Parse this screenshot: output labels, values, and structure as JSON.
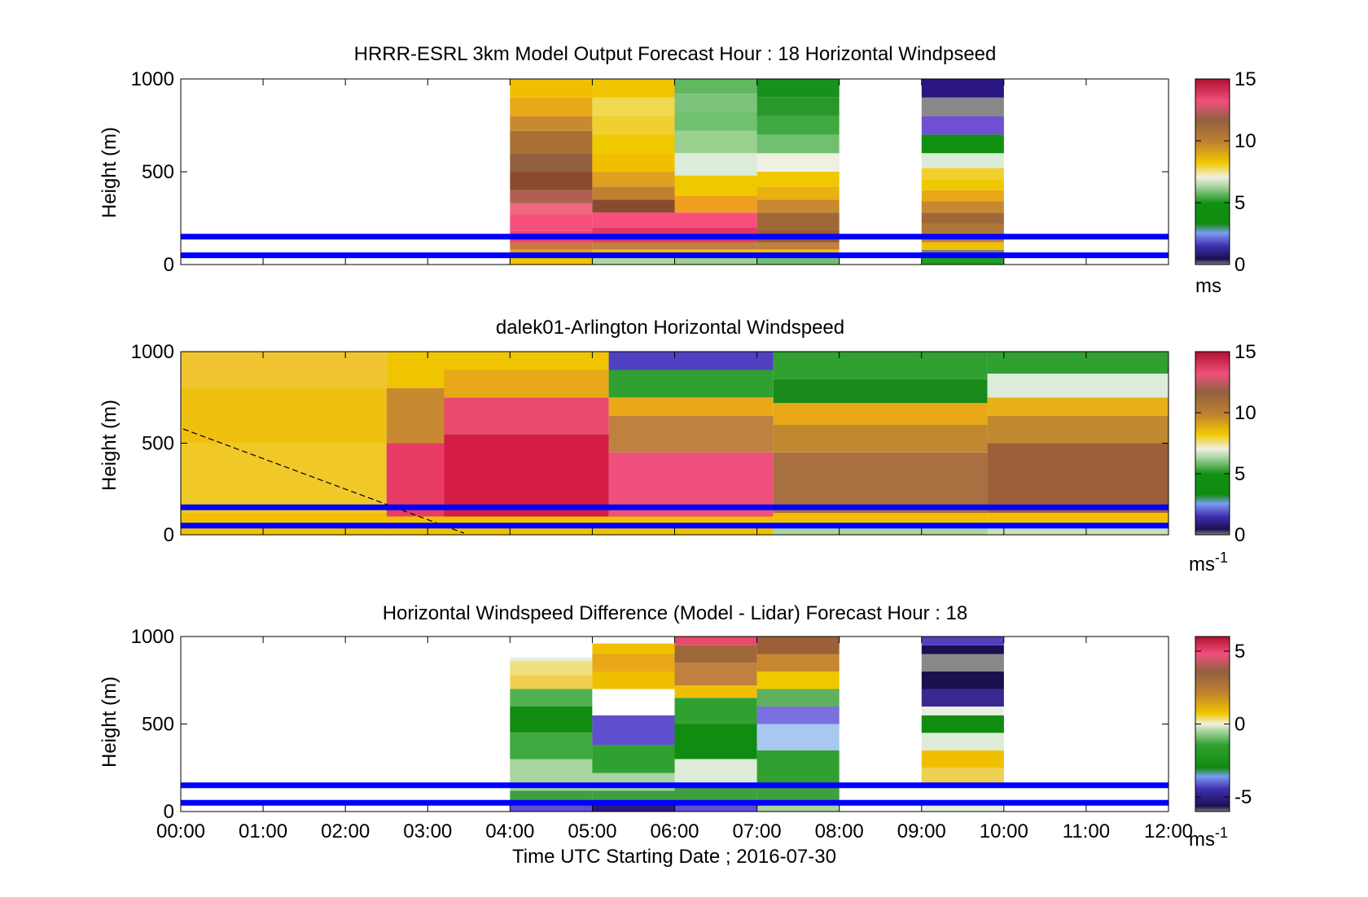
{
  "figure": {
    "xlabel": "Time UTC  Starting Date ; 2016-07-30",
    "x_tick_labels": [
      "00:00",
      "01:00",
      "02:00",
      "03:00",
      "04:00",
      "05:00",
      "06:00",
      "07:00",
      "08:00",
      "09:00",
      "10:00",
      "11:00",
      "12:00"
    ],
    "overlay_line_color": "#0000ff",
    "overlay_line_heights_m": [
      50,
      150
    ]
  },
  "chart_data": [
    {
      "type": "heatmap",
      "title": "HRRR-ESRL 3km Model Output   Forecast Hour : 18 Horizontal Windpseed",
      "ylabel": "Height (m)",
      "ylim": [
        0,
        1000
      ],
      "xlim": [
        0,
        12
      ],
      "y_tick_labels": [
        "0",
        "500",
        "1000"
      ],
      "colorbar": {
        "ticks": [
          "0",
          "5",
          "10",
          "15"
        ],
        "range": [
          0,
          15
        ],
        "unit": "ms",
        "unit_superscript": ""
      },
      "blocks": [
        {
          "t0": 4,
          "t1": 5,
          "levels": [
            [
              0,
              0.04,
              "#f0c400"
            ],
            [
              0.04,
              0.08,
              "#e0a010"
            ],
            [
              0.08,
              0.12,
              "#c87840"
            ],
            [
              0.12,
              0.18,
              "#f04070"
            ],
            [
              0.18,
              0.27,
              "#f8507c"
            ],
            [
              0.27,
              0.33,
              "#f06880"
            ],
            [
              0.33,
              0.4,
              "#b06050"
            ],
            [
              0.4,
              0.5,
              "#8a4a30"
            ],
            [
              0.5,
              0.6,
              "#906040"
            ],
            [
              0.6,
              0.72,
              "#a87030"
            ],
            [
              0.72,
              0.8,
              "#c88a30"
            ],
            [
              0.8,
              0.9,
              "#e8a818"
            ],
            [
              0.9,
              1,
              "#f0c000"
            ]
          ]
        },
        {
          "t0": 5,
          "t1": 6,
          "levels": [
            [
              0,
              0.04,
              "#b0d8a0"
            ],
            [
              0.04,
              0.08,
              "#f0c000"
            ],
            [
              0.08,
              0.12,
              "#c08040"
            ],
            [
              0.12,
              0.2,
              "#e03860"
            ],
            [
              0.2,
              0.28,
              "#f8507c"
            ],
            [
              0.28,
              0.35,
              "#8a4a30"
            ],
            [
              0.35,
              0.42,
              "#c08030"
            ],
            [
              0.42,
              0.5,
              "#e0a020"
            ],
            [
              0.5,
              0.6,
              "#f0c000"
            ],
            [
              0.6,
              0.7,
              "#f0c800"
            ],
            [
              0.7,
              0.8,
              "#f0d030"
            ],
            [
              0.8,
              0.9,
              "#f0d850"
            ],
            [
              0.9,
              1,
              "#f0c400"
            ]
          ]
        },
        {
          "t0": 6,
          "t1": 7,
          "levels": [
            [
              0,
              0.04,
              "#a0d090"
            ],
            [
              0.04,
              0.08,
              "#f0c000"
            ],
            [
              0.08,
              0.12,
              "#c08040"
            ],
            [
              0.12,
              0.2,
              "#e03860"
            ],
            [
              0.2,
              0.28,
              "#f8507c"
            ],
            [
              0.28,
              0.37,
              "#f0a020"
            ],
            [
              0.37,
              0.48,
              "#f0c800"
            ],
            [
              0.48,
              0.6,
              "#dcecd8"
            ],
            [
              0.6,
              0.72,
              "#9cd090"
            ],
            [
              0.72,
              0.82,
              "#70c070"
            ],
            [
              0.82,
              0.92,
              "#7cc47c"
            ],
            [
              0.92,
              1,
              "#60b860"
            ]
          ]
        },
        {
          "t0": 7,
          "t1": 8,
          "levels": [
            [
              0,
              0.04,
              "#70c070"
            ],
            [
              0.04,
              0.08,
              "#f0c000"
            ],
            [
              0.08,
              0.12,
              "#c08040"
            ],
            [
              0.12,
              0.18,
              "#9a5a30"
            ],
            [
              0.18,
              0.28,
              "#a06838"
            ],
            [
              0.28,
              0.35,
              "#c88830"
            ],
            [
              0.35,
              0.42,
              "#e8b010"
            ],
            [
              0.42,
              0.5,
              "#f0c800"
            ],
            [
              0.5,
              0.6,
              "#f0f0e0"
            ],
            [
              0.6,
              0.7,
              "#70c070"
            ],
            [
              0.7,
              0.8,
              "#40a840"
            ],
            [
              0.8,
              0.9,
              "#28982a"
            ],
            [
              0.9,
              1,
              "#18901c"
            ]
          ]
        },
        {
          "t0": 9,
          "t1": 10,
          "levels": [
            [
              0,
              0.04,
              "#20a020"
            ],
            [
              0.04,
              0.08,
              "#808080"
            ],
            [
              0.08,
              0.12,
              "#f0c000"
            ],
            [
              0.12,
              0.16,
              "#c08040"
            ],
            [
              0.16,
              0.22,
              "#b07838"
            ],
            [
              0.22,
              0.28,
              "#a06838"
            ],
            [
              0.28,
              0.34,
              "#c88830"
            ],
            [
              0.34,
              0.4,
              "#e8a818"
            ],
            [
              0.4,
              0.46,
              "#f0c800"
            ],
            [
              0.46,
              0.52,
              "#f0d030"
            ],
            [
              0.52,
              0.6,
              "#dcecd8"
            ],
            [
              0.6,
              0.7,
              "#109010"
            ],
            [
              0.7,
              0.8,
              "#7050d0"
            ],
            [
              0.8,
              0.9,
              "#888888"
            ],
            [
              0.9,
              1,
              "#2a1680"
            ]
          ]
        }
      ]
    },
    {
      "type": "heatmap",
      "title": "dalek01-Arlington  Horizontal Windspeed",
      "ylabel": "Height (m)",
      "ylim": [
        0,
        1000
      ],
      "xlim": [
        0,
        12
      ],
      "y_tick_labels": [
        "0",
        "500",
        "1000"
      ],
      "colorbar": {
        "ticks": [
          "0",
          "5",
          "10",
          "15"
        ],
        "range": [
          0,
          15
        ],
        "unit": "ms",
        "unit_superscript": "-1"
      },
      "bands_by_time": [
        {
          "t0": 0,
          "t1": 2.5,
          "levels": [
            [
              0,
              0.12,
              "#f0c000"
            ],
            [
              0.12,
              0.5,
              "#f0c828"
            ],
            [
              0.5,
              0.8,
              "#f0c010"
            ],
            [
              0.8,
              1,
              "#f0c430"
            ]
          ]
        },
        {
          "t0": 2.5,
          "t1": 3.2,
          "levels": [
            [
              0,
              0.1,
              "#f0c000"
            ],
            [
              0.1,
              0.5,
              "#e83c64"
            ],
            [
              0.5,
              0.8,
              "#c88a30"
            ],
            [
              0.8,
              1,
              "#f0c400"
            ]
          ]
        },
        {
          "t0": 3.2,
          "t1": 5.2,
          "levels": [
            [
              0,
              0.1,
              "#f0c000"
            ],
            [
              0.1,
              0.55,
              "#d41c44"
            ],
            [
              0.55,
              0.75,
              "#e84a6c"
            ],
            [
              0.75,
              0.9,
              "#e8a818"
            ],
            [
              0.9,
              1,
              "#f0c400"
            ]
          ]
        },
        {
          "t0": 5.2,
          "t1": 7.2,
          "levels": [
            [
              0,
              0.1,
              "#f0c000"
            ],
            [
              0.1,
              0.45,
              "#f0507c"
            ],
            [
              0.45,
              0.65,
              "#c08040"
            ],
            [
              0.65,
              0.75,
              "#e8a818"
            ],
            [
              0.75,
              0.9,
              "#30a030"
            ],
            [
              0.9,
              1,
              "#5040c0"
            ]
          ]
        },
        {
          "t0": 7.2,
          "t1": 9.8,
          "levels": [
            [
              0,
              0.05,
              "#a8d4a0"
            ],
            [
              0.05,
              0.12,
              "#f0c000"
            ],
            [
              0.12,
              0.45,
              "#a87040"
            ],
            [
              0.45,
              0.6,
              "#c08830"
            ],
            [
              0.6,
              0.72,
              "#e8a818"
            ],
            [
              0.72,
              0.85,
              "#1a8a1a"
            ],
            [
              0.85,
              1,
              "#30a030"
            ]
          ]
        },
        {
          "t0": 9.8,
          "t1": 12,
          "levels": [
            [
              0,
              0.05,
              "#c8e0c0"
            ],
            [
              0.05,
              0.12,
              "#f0c000"
            ],
            [
              0.12,
              0.5,
              "#9c6038"
            ],
            [
              0.5,
              0.65,
              "#c08830"
            ],
            [
              0.65,
              0.75,
              "#e8b018"
            ],
            [
              0.75,
              0.88,
              "#dcecd8"
            ],
            [
              0.88,
              1,
              "#30a030"
            ]
          ]
        }
      ]
    },
    {
      "type": "heatmap",
      "title": "Horizontal Windspeed Difference (Model - Lidar) Forecast Hour : 18",
      "ylabel": "Height (m)",
      "ylim": [
        0,
        1000
      ],
      "xlim": [
        0,
        12
      ],
      "y_tick_labels": [
        "0",
        "500",
        "1000"
      ],
      "colorbar": {
        "ticks": [
          "-5",
          "0",
          "5"
        ],
        "range": [
          -6,
          6
        ],
        "unit": "ms",
        "unit_superscript": "-1"
      },
      "blocks": [
        {
          "t0": 4,
          "t1": 5,
          "levels": [
            [
              0,
              0.06,
              "#6050d0"
            ],
            [
              0.06,
              0.12,
              "#40a040"
            ],
            [
              0.12,
              0.3,
              "#a8d4a0"
            ],
            [
              0.3,
              0.45,
              "#40a840"
            ],
            [
              0.45,
              0.6,
              "#108c10"
            ],
            [
              0.6,
              0.7,
              "#50b050"
            ],
            [
              0.7,
              0.78,
              "#f0d050"
            ],
            [
              0.78,
              0.86,
              "#f0e080"
            ],
            [
              0.86,
              0.88,
              "#e8eee0"
            ]
          ]
        },
        {
          "t0": 5,
          "t1": 6,
          "levels": [
            [
              0,
              0.06,
              "#2a1880"
            ],
            [
              0.06,
              0.12,
              "#40a040"
            ],
            [
              0.12,
              0.22,
              "#a8d4a0"
            ],
            [
              0.22,
              0.38,
              "#30a030"
            ],
            [
              0.38,
              0.55,
              "#6050d0"
            ],
            [
              0.55,
              0.7,
              "#ffffff"
            ],
            [
              0.7,
              0.8,
              "#f0c000"
            ],
            [
              0.8,
              0.9,
              "#e8a818"
            ],
            [
              0.9,
              0.96,
              "#f0c000"
            ]
          ]
        },
        {
          "t0": 6,
          "t1": 7,
          "levels": [
            [
              0,
              0.06,
              "#6050d0"
            ],
            [
              0.06,
              0.15,
              "#40a040"
            ],
            [
              0.15,
              0.3,
              "#dcecd8"
            ],
            [
              0.3,
              0.5,
              "#108c10"
            ],
            [
              0.5,
              0.65,
              "#30a030"
            ],
            [
              0.65,
              0.72,
              "#f0c000"
            ],
            [
              0.72,
              0.85,
              "#c08040"
            ],
            [
              0.85,
              0.95,
              "#a06838"
            ],
            [
              0.95,
              1,
              "#e84a6c"
            ]
          ]
        },
        {
          "t0": 7,
          "t1": 8,
          "levels": [
            [
              0,
              0.06,
              "#a8d4a0"
            ],
            [
              0.06,
              0.15,
              "#40a040"
            ],
            [
              0.15,
              0.35,
              "#30a030"
            ],
            [
              0.35,
              0.5,
              "#a8c8f0"
            ],
            [
              0.5,
              0.6,
              "#7a70e0"
            ],
            [
              0.6,
              0.7,
              "#60b060"
            ],
            [
              0.7,
              0.8,
              "#f0c800"
            ],
            [
              0.8,
              0.9,
              "#c88830"
            ],
            [
              0.9,
              1,
              "#9a6038"
            ]
          ]
        },
        {
          "t0": 9,
          "t1": 10,
          "levels": [
            [
              0,
              0.05,
              "#e8eee0"
            ],
            [
              0.05,
              0.15,
              "#ffffff"
            ],
            [
              0.15,
              0.25,
              "#f0d050"
            ],
            [
              0.25,
              0.35,
              "#f0c000"
            ],
            [
              0.35,
              0.45,
              "#dcecd8"
            ],
            [
              0.45,
              0.55,
              "#108c10"
            ],
            [
              0.55,
              0.6,
              "#e8eee0"
            ],
            [
              0.6,
              0.7,
              "#3a2890"
            ],
            [
              0.7,
              0.8,
              "#1a1050"
            ],
            [
              0.8,
              0.9,
              "#888888"
            ],
            [
              0.9,
              0.95,
              "#1a1050"
            ],
            [
              0.95,
              1,
              "#5040c0"
            ]
          ]
        }
      ]
    }
  ]
}
